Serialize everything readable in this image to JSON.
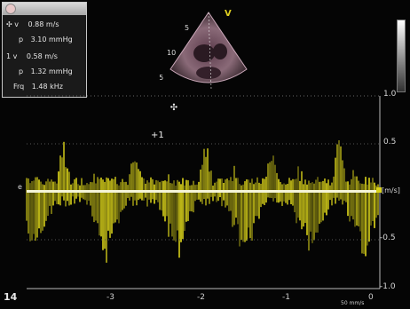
{
  "readout": {
    "rows": [
      {
        "marker": "✣ v",
        "value": "0.88 m/s"
      },
      {
        "marker": "p",
        "value": "3.10 mmHg"
      },
      {
        "marker": "1 v",
        "value": "0.58 m/s"
      },
      {
        "marker": "p",
        "value": "1.32 mmHg"
      },
      {
        "marker": "Frq",
        "value": "1.48 kHz"
      }
    ]
  },
  "sector": {
    "probe_mark": "V",
    "depth_labels": [
      "5",
      "10",
      "15"
    ]
  },
  "velocity_scale": {
    "ticks": [
      "1.0",
      "0.5",
      "-0.5",
      "-1.0"
    ],
    "unit": "[m/s]"
  },
  "time_axis": {
    "labels": [
      "-3",
      "-2",
      "-1",
      "0"
    ],
    "speed": "50 mm/s"
  },
  "depth_indicator": "14",
  "markers": {
    "cursor_2": "+1",
    "baseline_marker": "e"
  },
  "colors": {
    "doppler": "#d9d21a",
    "baseline": "#f4f4d8",
    "background": "#050505"
  }
}
